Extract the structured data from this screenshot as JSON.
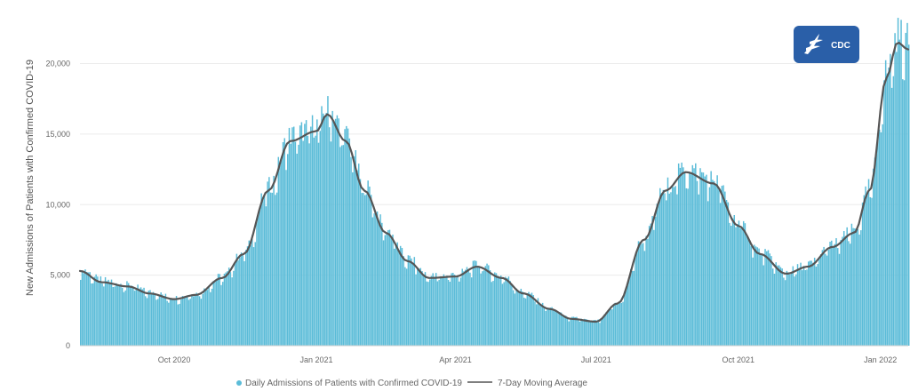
{
  "chart_data": {
    "type": "bar",
    "ylabel": "New Admissions of Patients with Confirmed COVID-19",
    "ylim": [
      0,
      24000
    ],
    "y_ticks": [
      {
        "value": 0,
        "label": "0"
      },
      {
        "value": 5000,
        "label": "5,000"
      },
      {
        "value": 10000,
        "label": "10,000"
      },
      {
        "value": 15000,
        "label": "15,000"
      },
      {
        "value": 20000,
        "label": "20,000"
      }
    ],
    "x_range": [
      "2020-08-01",
      "2022-01-19"
    ],
    "x_ticks": [
      {
        "date": "2020-10-01",
        "label": "Oct 2020"
      },
      {
        "date": "2021-01-01",
        "label": "Jan 2021"
      },
      {
        "date": "2021-04-01",
        "label": "Apr 2021"
      },
      {
        "date": "2021-07-01",
        "label": "Jul 2021"
      },
      {
        "date": "2021-10-01",
        "label": "Oct 2021"
      },
      {
        "date": "2022-01-01",
        "label": "Jan 2022"
      }
    ],
    "grid": true,
    "legend_position": "bottom",
    "series": [
      {
        "name": "Daily Admissions of Patients with Confirmed COVID-19",
        "kind": "bar",
        "color": "#5bbcd8"
      },
      {
        "name": "7-Day Moving Average",
        "kind": "line",
        "color": "#555555"
      }
    ],
    "moving_average_points": [
      {
        "date": "2020-08-01",
        "y": 5300
      },
      {
        "date": "2020-08-15",
        "y": 4500
      },
      {
        "date": "2020-09-01",
        "y": 4200
      },
      {
        "date": "2020-09-15",
        "y": 3700
      },
      {
        "date": "2020-10-01",
        "y": 3300
      },
      {
        "date": "2020-10-15",
        "y": 3600
      },
      {
        "date": "2020-11-01",
        "y": 4800
      },
      {
        "date": "2020-11-15",
        "y": 6500
      },
      {
        "date": "2020-12-01",
        "y": 11000
      },
      {
        "date": "2020-12-15",
        "y": 14500
      },
      {
        "date": "2021-01-01",
        "y": 15200
      },
      {
        "date": "2021-01-08",
        "y": 16400
      },
      {
        "date": "2021-01-20",
        "y": 14500
      },
      {
        "date": "2021-02-01",
        "y": 11000
      },
      {
        "date": "2021-02-15",
        "y": 8000
      },
      {
        "date": "2021-03-01",
        "y": 6000
      },
      {
        "date": "2021-03-15",
        "y": 4800
      },
      {
        "date": "2021-04-01",
        "y": 4900
      },
      {
        "date": "2021-04-15",
        "y": 5600
      },
      {
        "date": "2021-05-01",
        "y": 4800
      },
      {
        "date": "2021-05-15",
        "y": 3700
      },
      {
        "date": "2021-06-01",
        "y": 2600
      },
      {
        "date": "2021-06-15",
        "y": 1900
      },
      {
        "date": "2021-07-01",
        "y": 1700
      },
      {
        "date": "2021-07-15",
        "y": 3000
      },
      {
        "date": "2021-08-01",
        "y": 7500
      },
      {
        "date": "2021-08-15",
        "y": 11000
      },
      {
        "date": "2021-08-28",
        "y": 12300
      },
      {
        "date": "2021-09-15",
        "y": 11500
      },
      {
        "date": "2021-10-01",
        "y": 8500
      },
      {
        "date": "2021-10-15",
        "y": 6500
      },
      {
        "date": "2021-11-01",
        "y": 5100
      },
      {
        "date": "2021-11-15",
        "y": 5600
      },
      {
        "date": "2021-12-01",
        "y": 7000
      },
      {
        "date": "2021-12-15",
        "y": 8000
      },
      {
        "date": "2021-12-25",
        "y": 11000
      },
      {
        "date": "2022-01-05",
        "y": 19000
      },
      {
        "date": "2022-01-12",
        "y": 21500
      },
      {
        "date": "2022-01-19",
        "y": 21000
      }
    ]
  },
  "logo": {
    "text": "CDC",
    "icon": "hhs-eagle-icon",
    "background": "#2a5fa8"
  },
  "colors": {
    "bar": "#5bbcd8",
    "line": "#555555",
    "grid": "#ececec"
  }
}
